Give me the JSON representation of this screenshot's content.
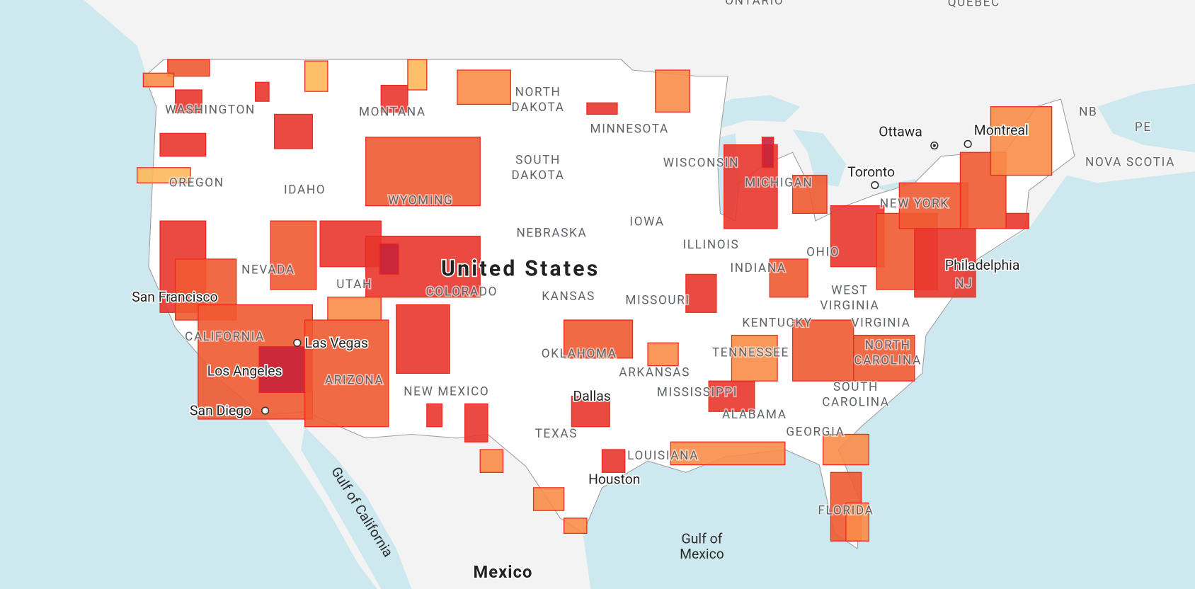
{
  "map": {
    "country_labels": [
      {
        "text": "United States"
      },
      {
        "text": "Mexico"
      }
    ],
    "region_labels": [
      {
        "text": [
          "ONTARIO"
        ]
      },
      {
        "text": [
          "QUEBEC"
        ]
      },
      {
        "text": [
          "WASHINGTON"
        ]
      },
      {
        "text": [
          "OREGON"
        ]
      },
      {
        "text": [
          "IDAHO"
        ]
      },
      {
        "text": [
          "MONTANA"
        ]
      },
      {
        "text": [
          "NORTH",
          "DAKOTA"
        ]
      },
      {
        "text": [
          "SOUTH",
          "DAKOTA"
        ]
      },
      {
        "text": [
          "WYOMING"
        ]
      },
      {
        "text": [
          "NEBRASKA"
        ]
      },
      {
        "text": [
          "IOWA"
        ]
      },
      {
        "text": [
          "MINNESOTA"
        ]
      },
      {
        "text": [
          "WISCONSIN"
        ]
      },
      {
        "text": [
          "MICHIGAN"
        ]
      },
      {
        "text": [
          "ILLINOIS"
        ]
      },
      {
        "text": [
          "INDIANA"
        ]
      },
      {
        "text": [
          "OHIO"
        ]
      },
      {
        "text": [
          "NEVADA"
        ]
      },
      {
        "text": [
          "UTAH"
        ]
      },
      {
        "text": [
          "COLORADO"
        ]
      },
      {
        "text": [
          "KANSAS"
        ]
      },
      {
        "text": [
          "MISSOURI"
        ]
      },
      {
        "text": [
          "CALIFORNIA"
        ]
      },
      {
        "text": [
          "ARIZONA"
        ]
      },
      {
        "text": [
          "NEW MEXICO"
        ]
      },
      {
        "text": [
          "OKLAHOMA"
        ]
      },
      {
        "text": [
          "ARKANSAS"
        ]
      },
      {
        "text": [
          "TENNESSEE"
        ]
      },
      {
        "text": [
          "KENTUCKY"
        ]
      },
      {
        "text": [
          "WEST",
          "VIRGINIA"
        ]
      },
      {
        "text": [
          "VIRGINIA"
        ]
      },
      {
        "text": [
          "NORTH",
          "CAROLINA"
        ]
      },
      {
        "text": [
          "SOUTH",
          "CAROLINA"
        ]
      },
      {
        "text": [
          "GEORGIA"
        ]
      },
      {
        "text": [
          "ALABAMA"
        ]
      },
      {
        "text": [
          "MISSISSIPPI"
        ]
      },
      {
        "text": [
          "LOUISIANA"
        ]
      },
      {
        "text": [
          "TEXAS"
        ]
      },
      {
        "text": [
          "FLORIDA"
        ]
      },
      {
        "text": [
          "NEW YORK"
        ]
      },
      {
        "text": [
          "NJ"
        ]
      },
      {
        "text": [
          "NB"
        ]
      },
      {
        "text": [
          "PE"
        ]
      },
      {
        "text": [
          "NOVA SCOTIA"
        ]
      }
    ],
    "city_labels": [
      {
        "text": "Ottawa"
      },
      {
        "text": "Montreal"
      },
      {
        "text": "Toronto"
      },
      {
        "text": "Philadelphia"
      },
      {
        "text": "San Francisco"
      },
      {
        "text": "Los Angeles"
      },
      {
        "text": "Las Vegas"
      },
      {
        "text": "San Diego"
      },
      {
        "text": "Dallas"
      },
      {
        "text": "Houston"
      }
    ],
    "water_labels": [
      {
        "text": [
          "Gulf of California"
        ]
      },
      {
        "text": [
          "Gulf of",
          "Mexico"
        ]
      }
    ]
  }
}
